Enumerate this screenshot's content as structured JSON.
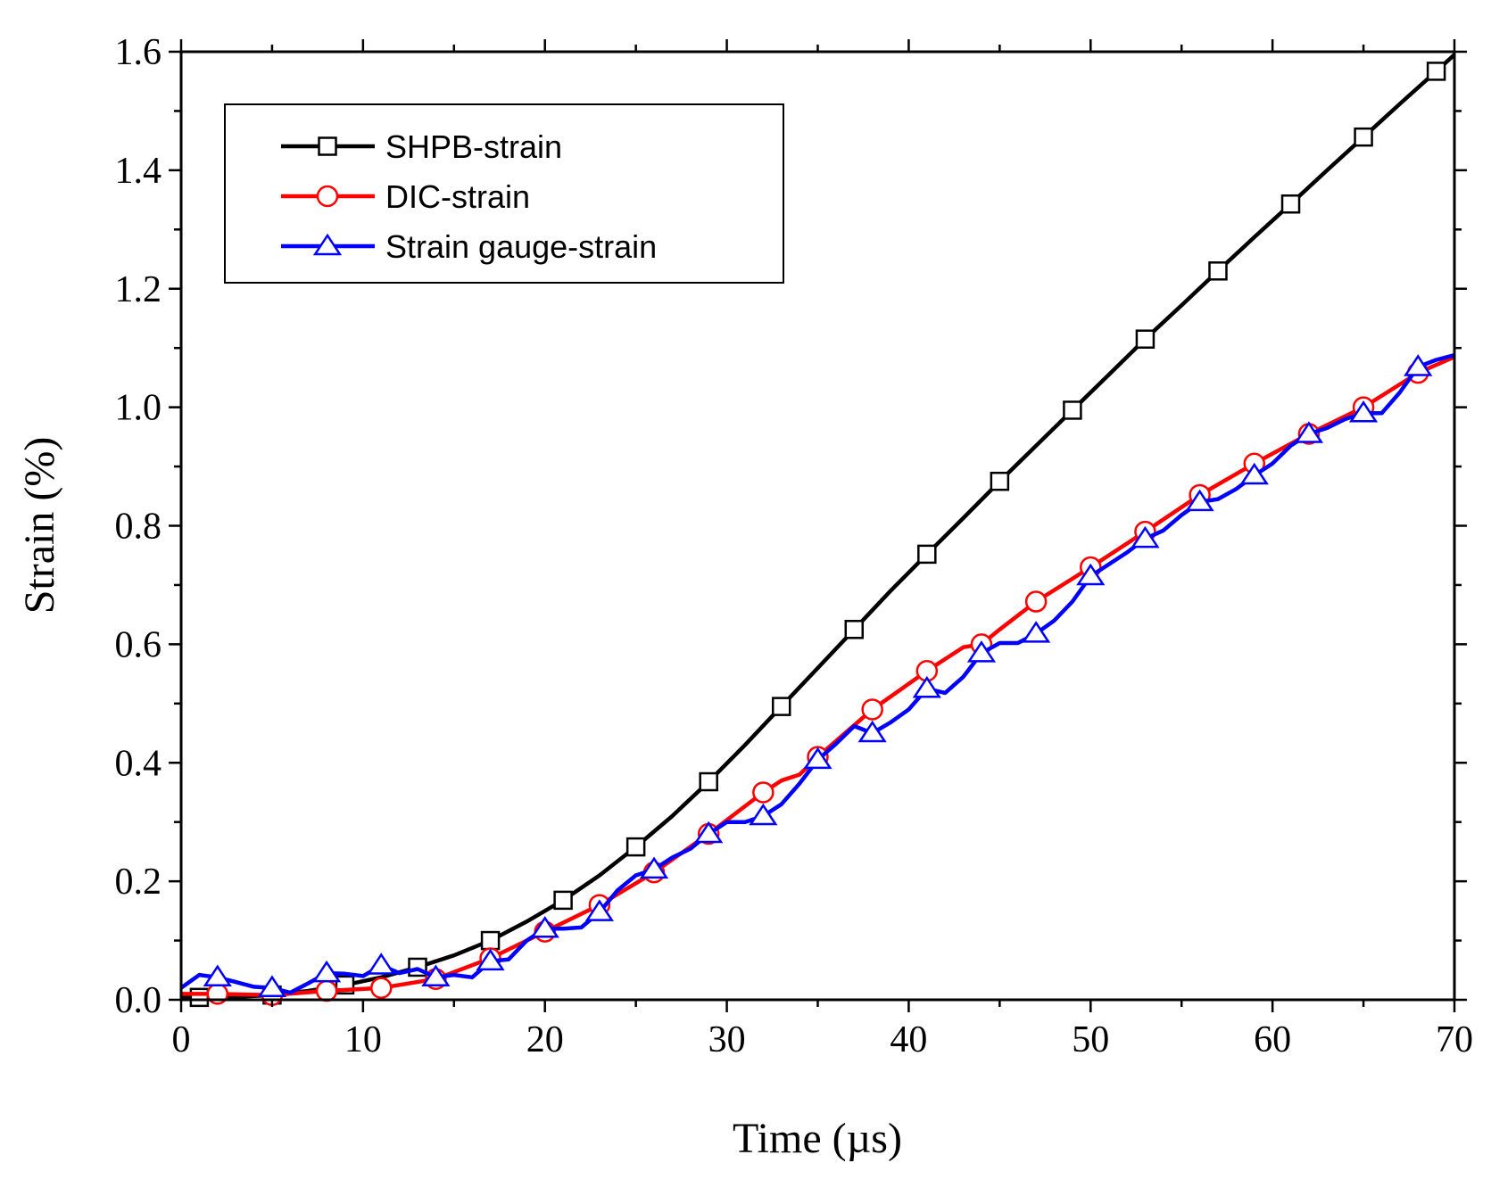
{
  "chart_data": {
    "type": "line",
    "title": "",
    "xlabel": "Time (µs)",
    "ylabel": "Strain (%)",
    "xlim": [
      0,
      70
    ],
    "ylim": [
      0,
      1.6
    ],
    "xticks": [
      0,
      10,
      20,
      30,
      40,
      50,
      60,
      70
    ],
    "yticks": [
      0,
      0.2,
      0.4,
      0.6,
      0.8,
      1.0,
      1.2,
      1.4,
      1.6
    ],
    "xtick_labels": [
      "0",
      "10",
      "20",
      "30",
      "40",
      "50",
      "60",
      "70"
    ],
    "ytick_labels": [
      "0.0",
      "0.2",
      "0.4",
      "0.6",
      "0.8",
      "1.0",
      "1.2",
      "1.4",
      "1.6"
    ],
    "grid": false,
    "legend_position": "top-left",
    "series": [
      {
        "name": "SHPB-strain",
        "color": "#000000",
        "marker": "square",
        "x": [
          0,
          1,
          3,
          5,
          7,
          9,
          11,
          13,
          15,
          17,
          19,
          21,
          23,
          25,
          27,
          29,
          31,
          33,
          35,
          37,
          39,
          41,
          43,
          45,
          47,
          49,
          51,
          53,
          55,
          57,
          59,
          61,
          63,
          65,
          67,
          69,
          70
        ],
        "y": [
          0.005,
          0.004,
          0.005,
          0.008,
          0.015,
          0.025,
          0.038,
          0.055,
          0.075,
          0.1,
          0.132,
          0.168,
          0.21,
          0.258,
          0.31,
          0.368,
          0.43,
          0.495,
          0.56,
          0.625,
          0.69,
          0.752,
          0.813,
          0.875,
          0.935,
          0.995,
          1.055,
          1.115,
          1.172,
          1.23,
          1.287,
          1.343,
          1.4,
          1.456,
          1.512,
          1.567,
          1.595
        ],
        "marker_x": [
          1,
          5,
          9,
          13,
          17,
          21,
          25,
          29,
          33,
          37,
          41,
          45,
          49,
          53,
          57,
          61,
          65,
          69
        ]
      },
      {
        "name": "DIC-strain",
        "color": "#ff0000",
        "marker": "circle",
        "x": [
          0,
          2,
          5,
          8,
          11,
          14,
          17,
          20,
          23,
          26,
          29,
          32,
          33,
          34,
          35,
          38,
          41,
          42,
          43,
          44,
          45,
          47,
          50,
          53,
          56,
          59,
          62,
          65,
          68,
          70
        ],
        "y": [
          0.01,
          0.01,
          0.008,
          0.015,
          0.02,
          0.035,
          0.07,
          0.115,
          0.16,
          0.215,
          0.28,
          0.35,
          0.37,
          0.38,
          0.41,
          0.49,
          0.555,
          0.575,
          0.595,
          0.6,
          0.625,
          0.672,
          0.73,
          0.79,
          0.852,
          0.905,
          0.955,
          1.0,
          1.058,
          1.085
        ],
        "marker_x": [
          2,
          5,
          8,
          11,
          14,
          17,
          20,
          23,
          26,
          29,
          32,
          35,
          38,
          41,
          44,
          47,
          50,
          53,
          56,
          59,
          62,
          65,
          68
        ]
      },
      {
        "name": "Strain gauge-strain",
        "color": "#0000ff",
        "marker": "triangle",
        "x": [
          0,
          1,
          2,
          3,
          4,
          5,
          6,
          7,
          8,
          9,
          10,
          11,
          12,
          13,
          14,
          15,
          16,
          17,
          18,
          19,
          20,
          21,
          22,
          23,
          24,
          25,
          26,
          27,
          28,
          29,
          30,
          31,
          32,
          33,
          34,
          35,
          36,
          37,
          38,
          39,
          40,
          41,
          42,
          43,
          44,
          45,
          46,
          47,
          48,
          49,
          50,
          51,
          52,
          53,
          54,
          55,
          56,
          57,
          58,
          59,
          60,
          61,
          62,
          63,
          64,
          65,
          66,
          67,
          68,
          69,
          70
        ],
        "y": [
          0.02,
          0.042,
          0.038,
          0.03,
          0.022,
          0.02,
          0.012,
          0.028,
          0.045,
          0.044,
          0.04,
          0.058,
          0.045,
          0.052,
          0.038,
          0.042,
          0.038,
          0.065,
          0.068,
          0.1,
          0.12,
          0.12,
          0.122,
          0.148,
          0.185,
          0.21,
          0.22,
          0.24,
          0.255,
          0.28,
          0.3,
          0.3,
          0.31,
          0.33,
          0.365,
          0.405,
          0.432,
          0.462,
          0.45,
          0.468,
          0.49,
          0.525,
          0.518,
          0.545,
          0.585,
          0.602,
          0.602,
          0.618,
          0.64,
          0.672,
          0.715,
          0.735,
          0.755,
          0.778,
          0.792,
          0.818,
          0.84,
          0.845,
          0.862,
          0.885,
          0.905,
          0.935,
          0.955,
          0.965,
          0.98,
          0.99,
          0.99,
          1.025,
          1.068,
          1.08,
          1.088
        ],
        "marker_x": [
          2,
          5,
          8,
          11,
          14,
          17,
          20,
          23,
          26,
          29,
          32,
          35,
          38,
          41,
          44,
          47,
          50,
          53,
          56,
          59,
          62,
          65,
          68
        ]
      }
    ]
  }
}
